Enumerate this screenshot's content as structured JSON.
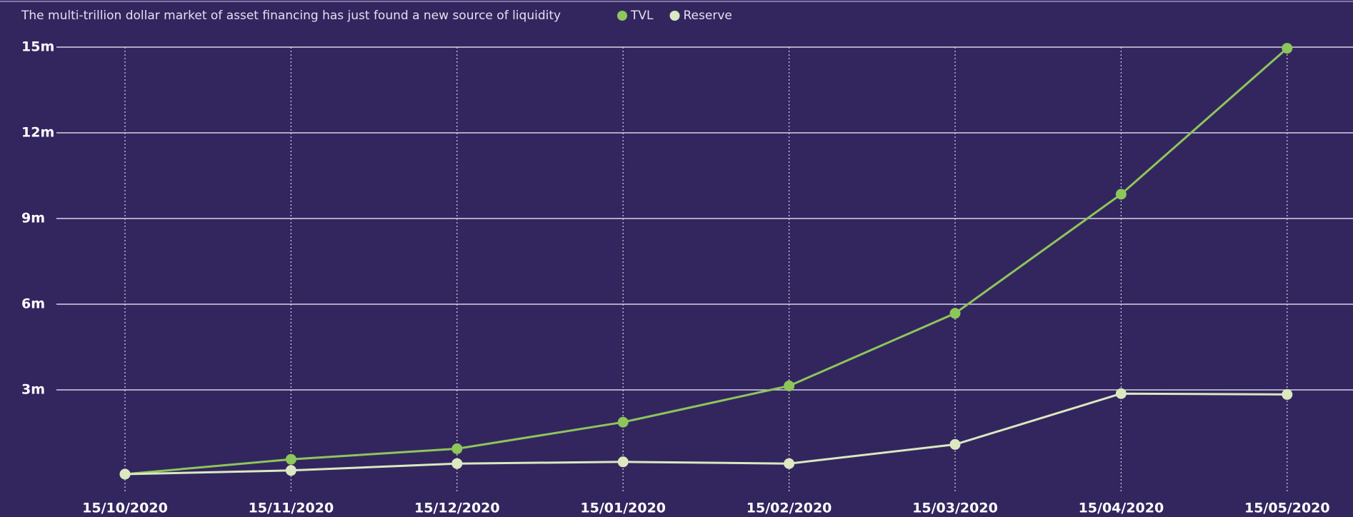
{
  "chart_data": {
    "type": "line",
    "title": "The multi-trillion dollar market of asset financing has just found a new source of liquidity",
    "categories": [
      "15/10/2020",
      "15/11/2020",
      "15/12/2020",
      "15/01/2020",
      "15/02/2020",
      "15/03/2020",
      "15/04/2020",
      "15/05/2020"
    ],
    "series": [
      {
        "name": "TVL",
        "color": "#8dc65a",
        "values": [
          50000,
          570000,
          940000,
          1870000,
          3140000,
          5680000,
          9850000,
          14960000
        ]
      },
      {
        "name": "Reserve",
        "color": "#dbe8c0",
        "values": [
          50000,
          180000,
          420000,
          480000,
          420000,
          1090000,
          2870000,
          2840000
        ]
      }
    ],
    "ylim": [
      0,
      15000000
    ],
    "yticks": [
      {
        "value": 3000000,
        "label": "3m"
      },
      {
        "value": 6000000,
        "label": "6m"
      },
      {
        "value": 9000000,
        "label": "9m"
      },
      {
        "value": 12000000,
        "label": "12m"
      },
      {
        "value": 15000000,
        "label": "15m"
      }
    ],
    "grid": true
  }
}
